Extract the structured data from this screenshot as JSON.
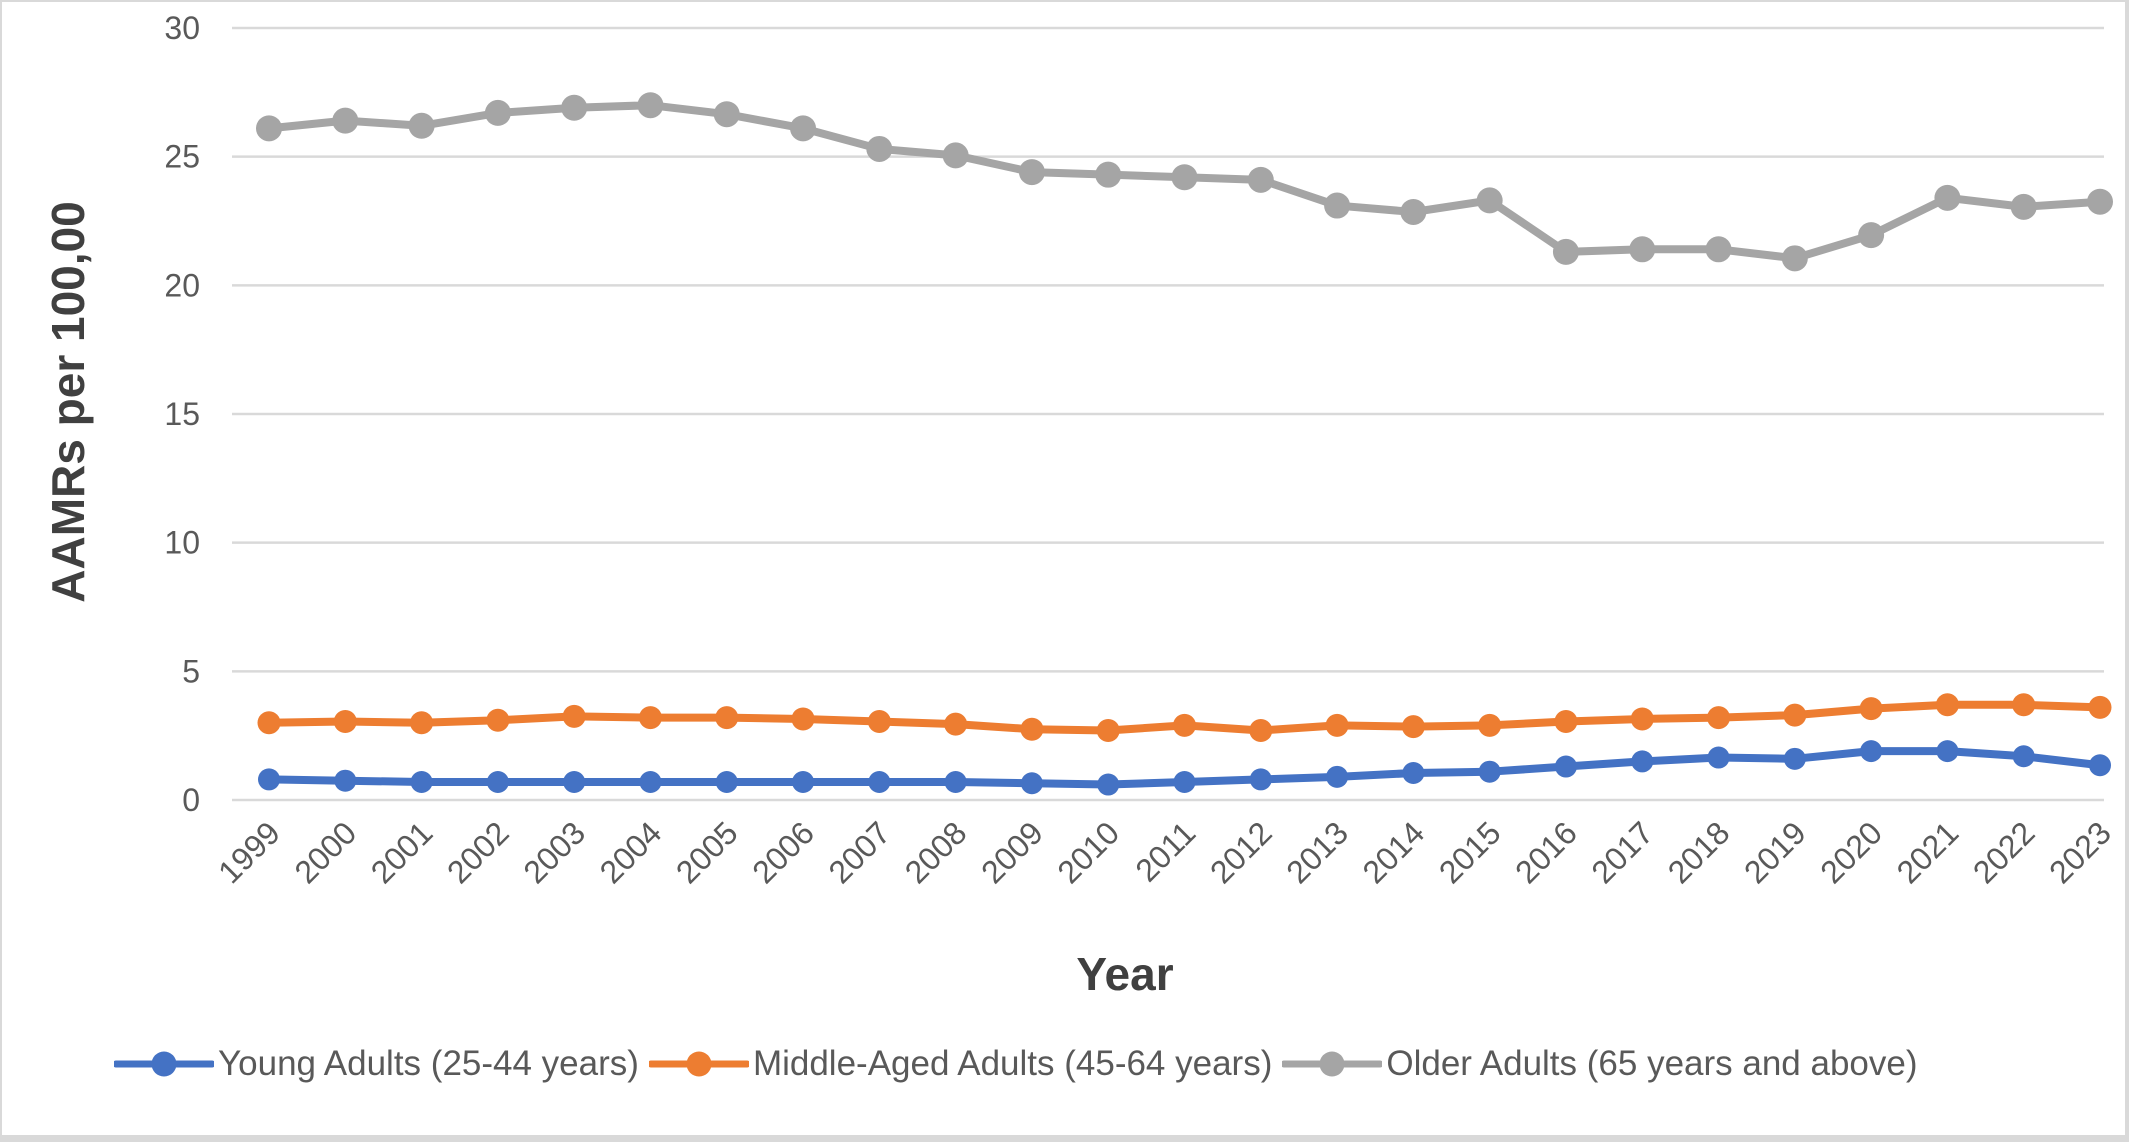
{
  "chart_data": {
    "type": "line",
    "x": [
      1999,
      2000,
      2001,
      2002,
      2003,
      2004,
      2005,
      2006,
      2007,
      2008,
      2009,
      2010,
      2011,
      2012,
      2013,
      2014,
      2015,
      2016,
      2017,
      2018,
      2019,
      2020,
      2021,
      2022,
      2023
    ],
    "series": [
      {
        "name": "Young Adults (25-44 years)",
        "color": "#4472C4",
        "marker_r": 11,
        "values": [
          0.8,
          0.75,
          0.7,
          0.7,
          0.7,
          0.7,
          0.7,
          0.7,
          0.7,
          0.7,
          0.65,
          0.6,
          0.7,
          0.8,
          0.9,
          1.05,
          1.1,
          1.3,
          1.5,
          1.65,
          1.6,
          1.9,
          1.9,
          1.7,
          1.35
        ]
      },
      {
        "name": "Middle-Aged Adults (45-64 years)",
        "color": "#ED7D31",
        "marker_r": 11.5,
        "values": [
          3.0,
          3.05,
          3.0,
          3.1,
          3.25,
          3.2,
          3.2,
          3.15,
          3.05,
          2.95,
          2.75,
          2.7,
          2.9,
          2.7,
          2.9,
          2.85,
          2.9,
          3.05,
          3.15,
          3.2,
          3.3,
          3.55,
          3.7,
          3.7,
          3.6
        ]
      },
      {
        "name": "Older Adults (65 years and above)",
        "color": "#A5A5A5",
        "marker_r": 13,
        "values": [
          26.1,
          26.4,
          26.2,
          26.7,
          26.9,
          27.0,
          26.65,
          26.1,
          25.3,
          25.05,
          24.4,
          24.3,
          24.2,
          24.1,
          23.1,
          22.85,
          23.3,
          21.3,
          21.4,
          21.4,
          21.05,
          21.95,
          23.4,
          23.05,
          23.25
        ]
      }
    ],
    "title": "",
    "xlabel": "Year",
    "ylabel": "AAMRs per 100,00",
    "ylim": [
      0,
      30
    ],
    "ytick_step": 5,
    "yticks": [
      0,
      5,
      10,
      15,
      20,
      25,
      30
    ],
    "grid": "horizontal",
    "legend_position": "bottom"
  },
  "styles": {
    "gridline_color": "#D9D9D9",
    "tick_label_color": "#595959",
    "axis_title_color": "#404040",
    "background": "#FFFFFF"
  }
}
